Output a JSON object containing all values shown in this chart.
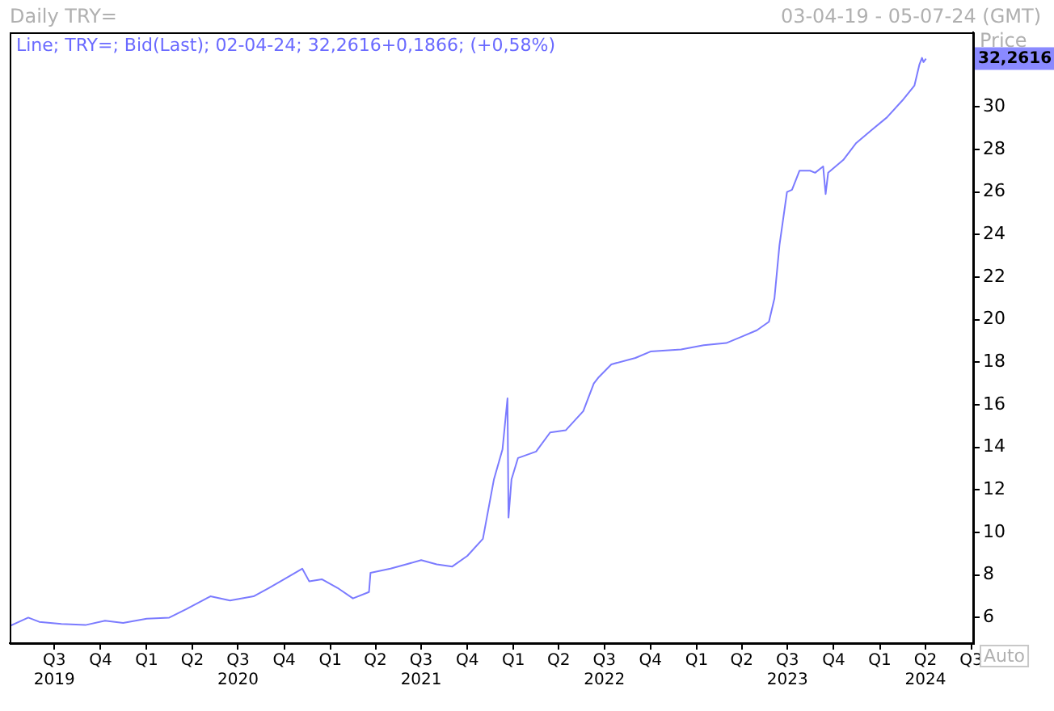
{
  "chart_data": {
    "type": "line",
    "title": "Daily TRY=",
    "subtitle": "03-04-19 - 05-07-24 (GMT)",
    "ylabel": "Price",
    "annotations": [
      "Line; TRY=; Bid(Last); 02-04-24; 32,2616+0,1866; (+0,58%)",
      "32,2616",
      "Auto"
    ],
    "series": [
      {
        "color": "#7b7bff",
        "x": [
          "2019-04-03",
          "2019-05-10",
          "2019-06-01",
          "2019-07-15",
          "2019-09-01",
          "2019-10-10",
          "2019-11-15",
          "2020-01-01",
          "2020-02-15",
          "2020-03-20",
          "2020-05-07",
          "2020-06-15",
          "2020-08-01",
          "2020-09-01",
          "2020-10-01",
          "2020-11-06",
          "2020-11-20",
          "2020-12-15",
          "2021-01-15",
          "2021-02-15",
          "2021-03-19",
          "2021-03-22",
          "2021-05-01",
          "2021-06-01",
          "2021-07-01",
          "2021-08-01",
          "2021-09-01",
          "2021-10-01",
          "2021-11-01",
          "2021-11-23",
          "2021-12-10",
          "2021-12-20",
          "2021-12-22",
          "2021-12-28",
          "2022-01-10",
          "2022-02-15",
          "2022-03-15",
          "2022-04-15",
          "2022-05-20",
          "2022-06-10",
          "2022-06-20",
          "2022-07-15",
          "2022-09-01",
          "2022-10-01",
          "2022-12-01",
          "2023-01-15",
          "2023-03-01",
          "2023-04-01",
          "2023-05-01",
          "2023-05-25",
          "2023-06-05",
          "2023-06-15",
          "2023-06-30",
          "2023-07-10",
          "2023-07-25",
          "2023-08-15",
          "2023-08-25",
          "2023-09-10",
          "2023-09-15",
          "2023-09-20",
          "2023-10-20",
          "2023-11-15",
          "2023-12-15",
          "2024-01-15",
          "2024-02-15",
          "2024-03-10",
          "2024-03-20",
          "2024-03-25",
          "2024-03-28",
          "2024-04-02"
        ],
        "values": [
          5.6,
          6.0,
          5.8,
          5.7,
          5.65,
          5.85,
          5.75,
          5.95,
          6.0,
          6.4,
          7.0,
          6.8,
          7.0,
          7.4,
          7.8,
          8.3,
          7.7,
          7.8,
          7.4,
          6.9,
          7.2,
          8.1,
          8.3,
          8.5,
          8.7,
          8.5,
          8.4,
          8.9,
          9.7,
          12.5,
          13.9,
          16.3,
          10.7,
          12.5,
          13.5,
          13.8,
          14.7,
          14.8,
          15.7,
          17.0,
          17.3,
          17.9,
          18.2,
          18.5,
          18.6,
          18.8,
          18.9,
          19.2,
          19.5,
          19.9,
          21.0,
          23.5,
          26.0,
          26.1,
          27.0,
          27.0,
          26.9,
          27.2,
          25.9,
          26.9,
          27.5,
          28.3,
          28.9,
          29.5,
          30.3,
          31.0,
          32.0,
          32.3,
          32.1,
          32.2616
        ]
      }
    ],
    "xlim": [
      "2019-04-03",
      "2024-07-05"
    ],
    "xticks": [
      {
        "value": "2019-07-01",
        "label": "Q3\n2019"
      },
      {
        "value": "2019-10-01",
        "label": "Q4"
      },
      {
        "value": "2020-01-01",
        "label": "Q1"
      },
      {
        "value": "2020-04-01",
        "label": "Q2"
      },
      {
        "value": "2020-07-01",
        "label": "Q3\n2020"
      },
      {
        "value": "2020-10-01",
        "label": "Q4"
      },
      {
        "value": "2021-01-01",
        "label": "Q1"
      },
      {
        "value": "2021-04-01",
        "label": "Q2"
      },
      {
        "value": "2021-07-01",
        "label": "Q3\n2021"
      },
      {
        "value": "2021-10-01",
        "label": "Q4"
      },
      {
        "value": "2022-01-01",
        "label": "Q1"
      },
      {
        "value": "2022-04-01",
        "label": "Q2"
      },
      {
        "value": "2022-07-01",
        "label": "Q3\n2022"
      },
      {
        "value": "2022-10-01",
        "label": "Q4"
      },
      {
        "value": "2023-01-01",
        "label": "Q1"
      },
      {
        "value": "2023-04-01",
        "label": "Q2"
      },
      {
        "value": "2023-07-01",
        "label": "Q3\n2023"
      },
      {
        "value": "2023-10-01",
        "label": "Q4"
      },
      {
        "value": "2024-01-01",
        "label": "Q1"
      },
      {
        "value": "2024-04-01",
        "label": "Q2\n2024"
      },
      {
        "value": "2024-07-01",
        "label": "Q3"
      }
    ],
    "ylim": [
      4.8,
      33.5
    ],
    "yticks": [
      6,
      8,
      10,
      12,
      14,
      16,
      18,
      20,
      22,
      24,
      26,
      28,
      30
    ],
    "grid": false,
    "legend": false,
    "marker": "none",
    "line_style": "solid"
  }
}
